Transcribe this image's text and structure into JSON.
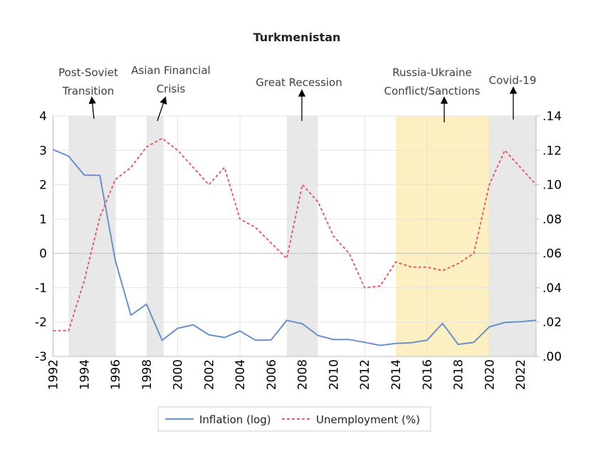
{
  "chart_data": {
    "type": "line",
    "title": "Turkmenistan",
    "x": [
      1992,
      1993,
      1994,
      1995,
      1996,
      1997,
      1998,
      1999,
      2000,
      2001,
      2002,
      2003,
      2004,
      2005,
      2006,
      2007,
      2008,
      2009,
      2010,
      2011,
      2012,
      2013,
      2014,
      2015,
      2016,
      2017,
      2018,
      2019,
      2020,
      2021,
      2022,
      2023
    ],
    "x_ticks": [
      "1992",
      "1994",
      "1996",
      "1998",
      "2000",
      "2002",
      "2004",
      "2006",
      "2008",
      "2010",
      "2012",
      "2014",
      "2016",
      "2018",
      "2020",
      "2022"
    ],
    "y_left": {
      "range": [
        -3,
        4
      ],
      "ticks": [
        "4",
        "3",
        "2",
        "1",
        "0",
        "-1",
        "-2",
        "-3"
      ]
    },
    "y_right": {
      "range": [
        0,
        0.14
      ],
      "ticks": [
        ".14",
        ".12",
        ".10",
        ".08",
        ".06",
        ".04",
        ".02",
        ".00"
      ]
    },
    "grid": true,
    "legend_position": "bottom",
    "series": [
      {
        "name": "Inflation (log)",
        "axis": "left",
        "color": "#6b8fc9",
        "style": "solid",
        "values": [
          3.02,
          2.83,
          2.28,
          2.27,
          -0.21,
          -1.8,
          -1.48,
          -2.53,
          -2.18,
          -2.08,
          -2.37,
          -2.45,
          -2.26,
          -2.53,
          -2.52,
          -1.95,
          -2.05,
          -2.39,
          -2.51,
          -2.51,
          -2.59,
          -2.68,
          -2.62,
          -2.6,
          -2.53,
          -2.04,
          -2.65,
          -2.59,
          -2.14,
          -2.01,
          -1.99,
          -1.95
        ]
      },
      {
        "name": "Unemployment (%)",
        "axis": "right",
        "color": "#e0606e",
        "style": "dashed",
        "values": [
          0.015,
          0.015,
          0.044,
          0.081,
          0.103,
          0.11,
          0.122,
          0.127,
          0.12,
          0.11,
          0.1,
          0.11,
          0.08,
          0.075,
          0.066,
          0.057,
          0.1,
          0.09,
          0.07,
          0.06,
          0.04,
          0.041,
          0.055,
          0.052,
          0.052,
          0.05,
          0.054,
          0.06,
          0.1,
          0.12,
          0.11,
          0.1
        ]
      }
    ],
    "shaded_periods": [
      {
        "start": 1993,
        "end": 1996,
        "color": "#e8e8e8",
        "label": [
          "Post-Soviet",
          "Transition"
        ]
      },
      {
        "start": 1998,
        "end": 1999.1,
        "color": "#e8e8e8",
        "label": [
          "Asian Financial",
          "Crisis"
        ]
      },
      {
        "start": 2007,
        "end": 2009,
        "color": "#e8e8e8",
        "label": [
          "Great Recession"
        ]
      },
      {
        "start": 2014,
        "end": 2020,
        "color": "#fcf0c3",
        "label": [
          "Russia-Ukraine",
          "Conflict/Sanctions"
        ]
      },
      {
        "start": 2020,
        "end": 2023,
        "color": "#e8e8e8",
        "label": [
          "Covid-19"
        ]
      }
    ]
  }
}
